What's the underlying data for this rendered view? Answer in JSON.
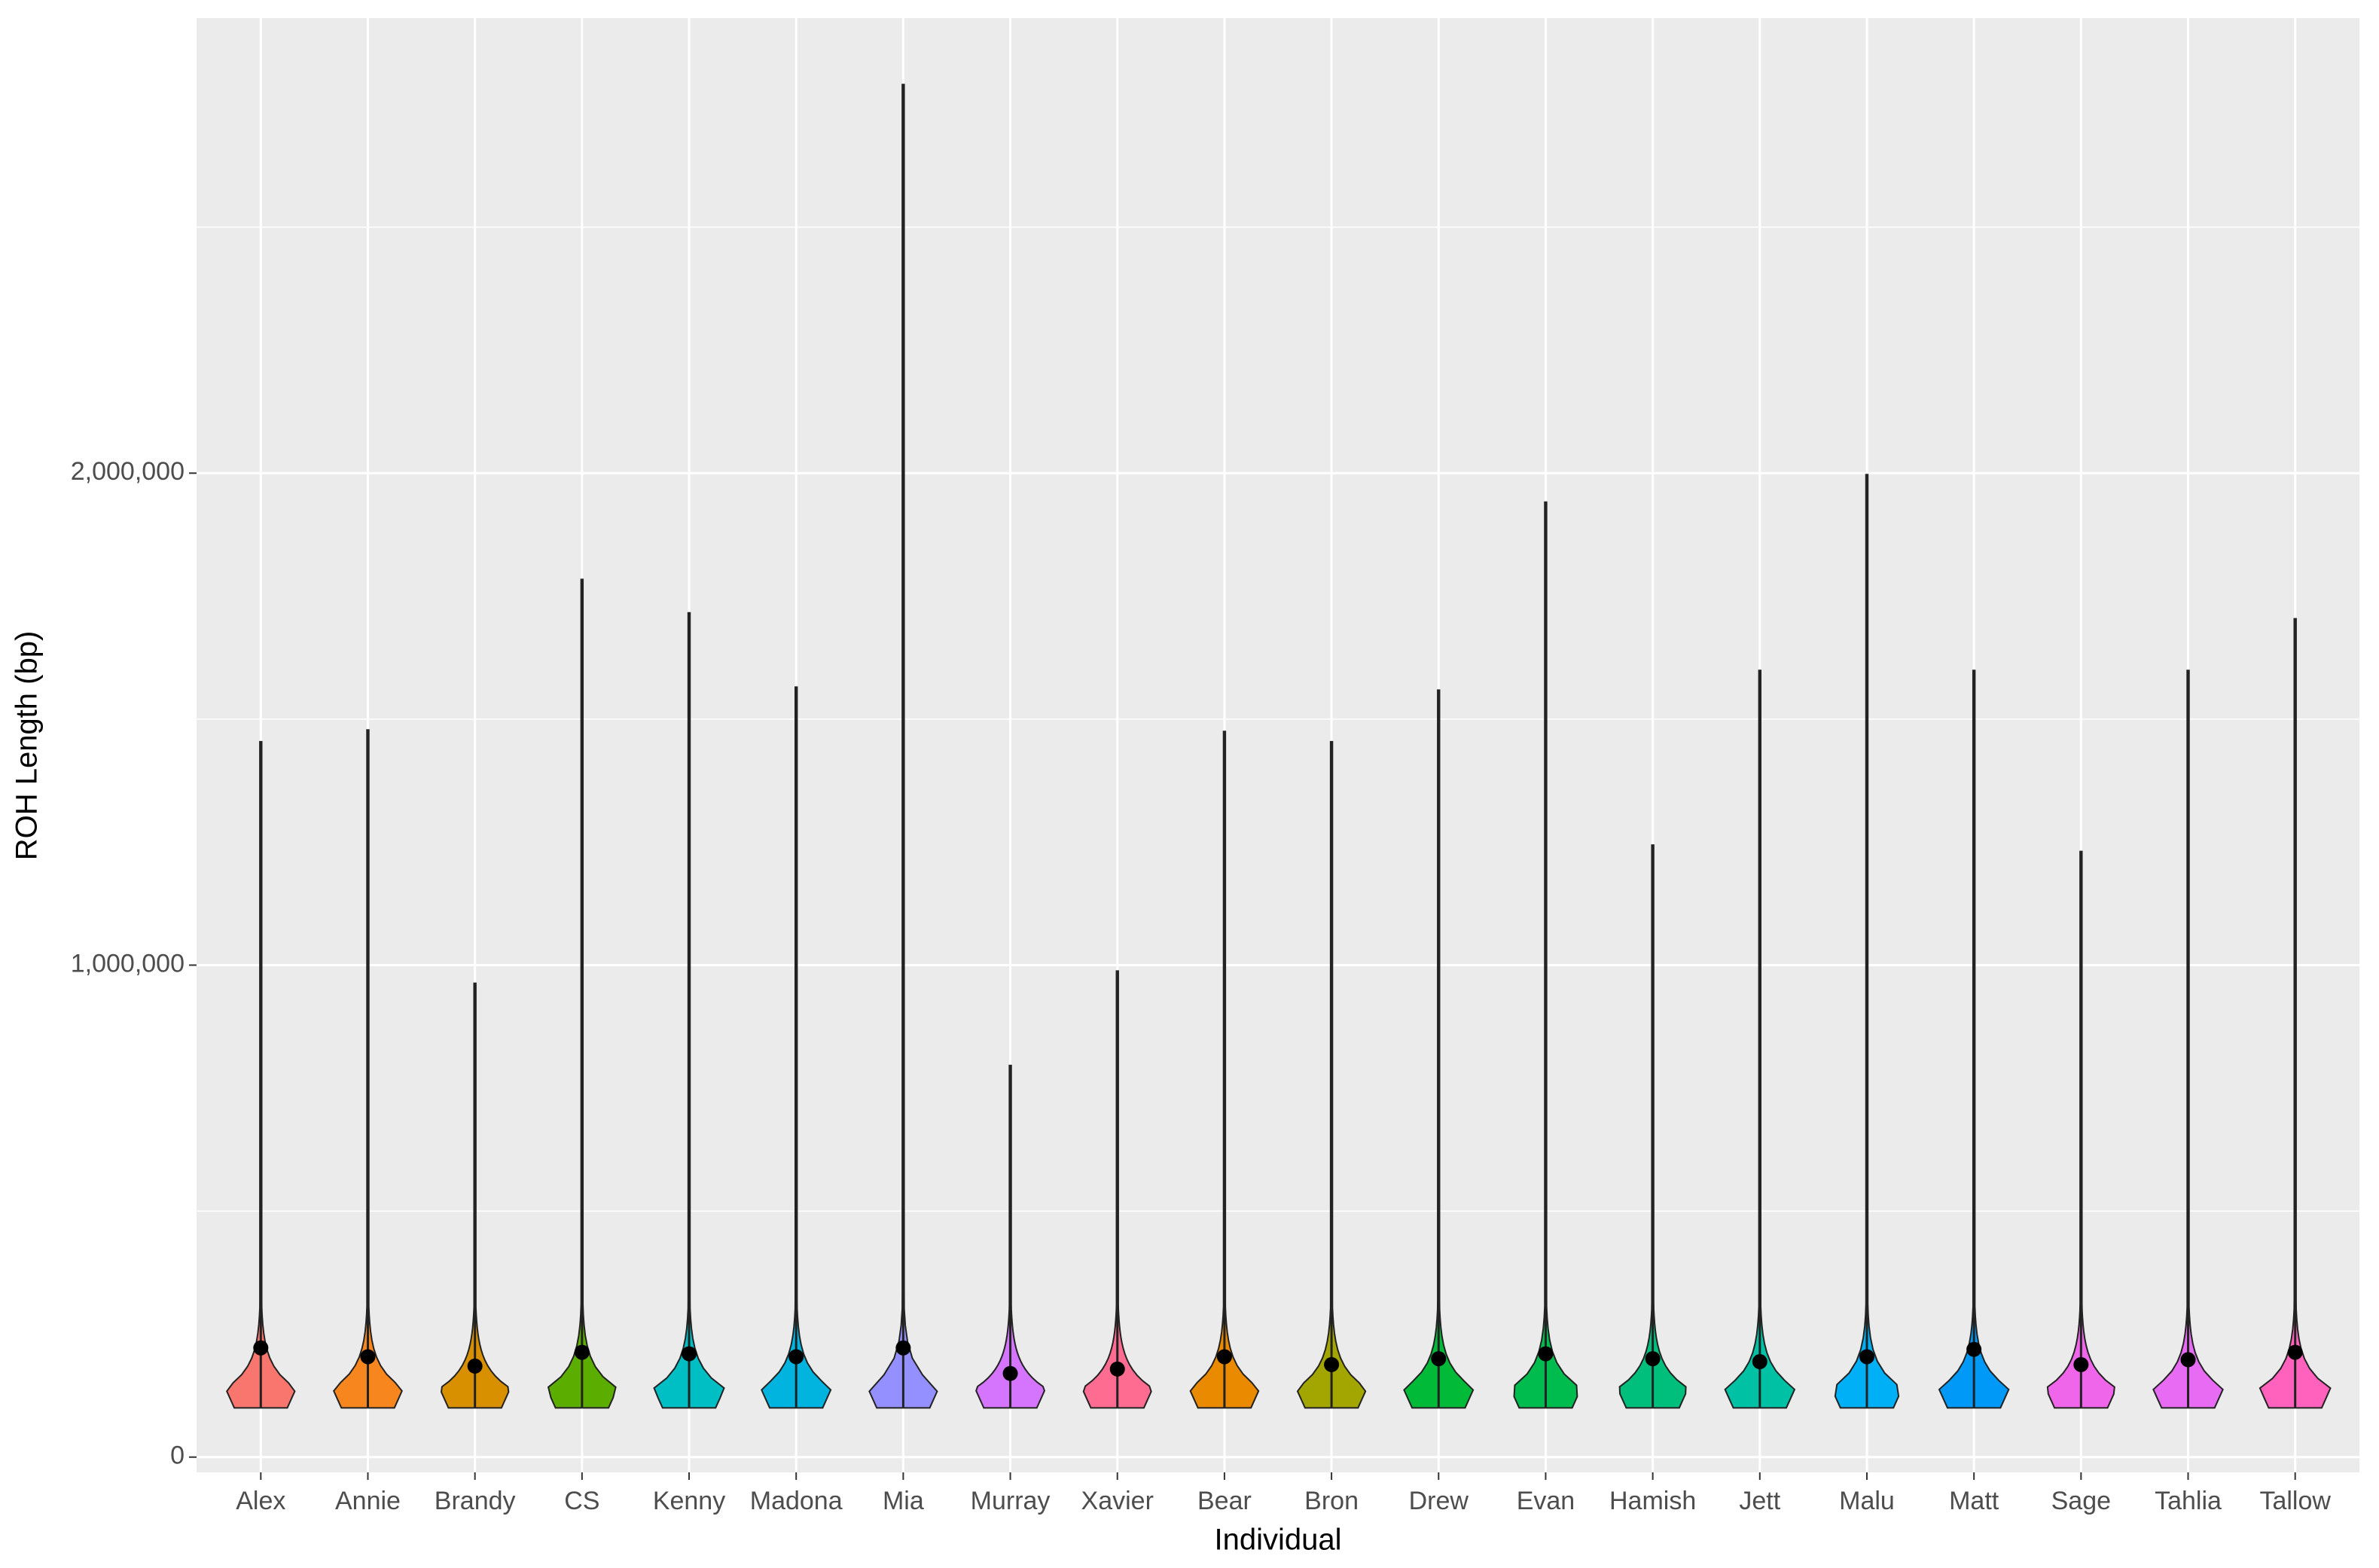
{
  "chart_data": {
    "type": "violin",
    "x_label": "Individual",
    "y_label": "ROH Length (bp)",
    "categories": [
      "Alex",
      "Annie",
      "Brandy",
      "CS",
      "Kenny",
      "Madona",
      "Mia",
      "Murray",
      "Xavier",
      "Bear",
      "Bron",
      "Drew",
      "Evan",
      "Hamish",
      "Jett",
      "Malu",
      "Matt",
      "Sage",
      "Tahlia",
      "Tallow"
    ],
    "max": [
      1454000,
      1478000,
      963000,
      1784000,
      1716000,
      1565000,
      2790000,
      796000,
      988000,
      1475000,
      1454000,
      1559000,
      1941000,
      1244000,
      1599000,
      1997000,
      1599000,
      1231000,
      1599000,
      1704000
    ],
    "mean": [
      222000,
      204000,
      185000,
      213000,
      210000,
      204000,
      222000,
      170000,
      179000,
      204000,
      188000,
      200000,
      210000,
      200000,
      194000,
      204000,
      219000,
      188000,
      198000,
      213000
    ],
    "min": [
      100000,
      100000,
      100000,
      100000,
      100000,
      100000,
      100000,
      100000,
      100000,
      100000,
      100000,
      100000,
      100000,
      100000,
      100000,
      100000,
      100000,
      100000,
      100000,
      100000
    ],
    "colors": [
      "#F8766D",
      "#F8861F",
      "#D89000",
      "#5BAD00",
      "#00BFC4",
      "#00B4DF",
      "#9590FF",
      "#D575FE",
      "#FF6C91",
      "#EA8A00",
      "#A3A500",
      "#00BA38",
      "#00BB4E",
      "#00BF7D",
      "#00C1A3",
      "#00B0F6",
      "#0099F8",
      "#F066EA",
      "#E76BF3",
      "#FF62BC"
    ],
    "ylim": [
      -31000,
      2925000
    ],
    "yticks": [
      {
        "value": 0,
        "label": "0"
      },
      {
        "value": 1000000,
        "label": "1,000,000"
      },
      {
        "value": 2000000,
        "label": "2,000,000"
      }
    ],
    "minor_grid": [
      500000,
      1500000,
      2500000
    ],
    "grid": true
  }
}
